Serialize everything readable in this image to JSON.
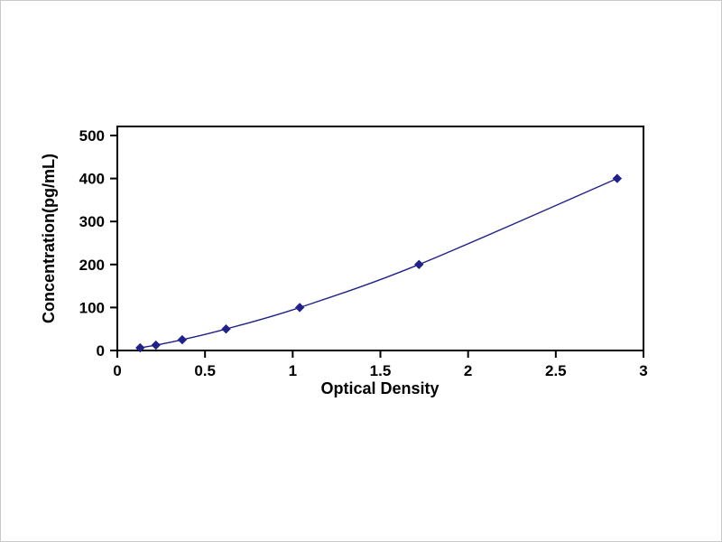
{
  "page": {
    "background_color": "#ffffff",
    "border_color": "#c9c9c9"
  },
  "chart_data": {
    "type": "line",
    "title": "",
    "xlabel": "Optical Density",
    "ylabel": "Concentration(pg/mL)",
    "x": [
      0.13,
      0.22,
      0.37,
      0.62,
      1.04,
      1.72,
      2.85
    ],
    "y": [
      6.25,
      12.5,
      25,
      50,
      100,
      200,
      400
    ],
    "xlim": [
      0,
      3
    ],
    "ylim": [
      0,
      500
    ],
    "x_ticks": [
      0,
      0.5,
      1,
      1.5,
      2,
      2.5,
      3
    ],
    "x_tick_labels": [
      "0",
      "0.5",
      "1",
      "1.5",
      "2",
      "2.5",
      "3"
    ],
    "y_ticks": [
      0,
      100,
      200,
      300,
      400,
      500
    ],
    "y_tick_labels": [
      "0",
      "100",
      "200",
      "300",
      "400",
      "500"
    ],
    "line_color": "#21218a",
    "marker": "diamond",
    "marker_color": "#21218a",
    "axis_color": "#000000",
    "grid": false,
    "legend": null
  }
}
